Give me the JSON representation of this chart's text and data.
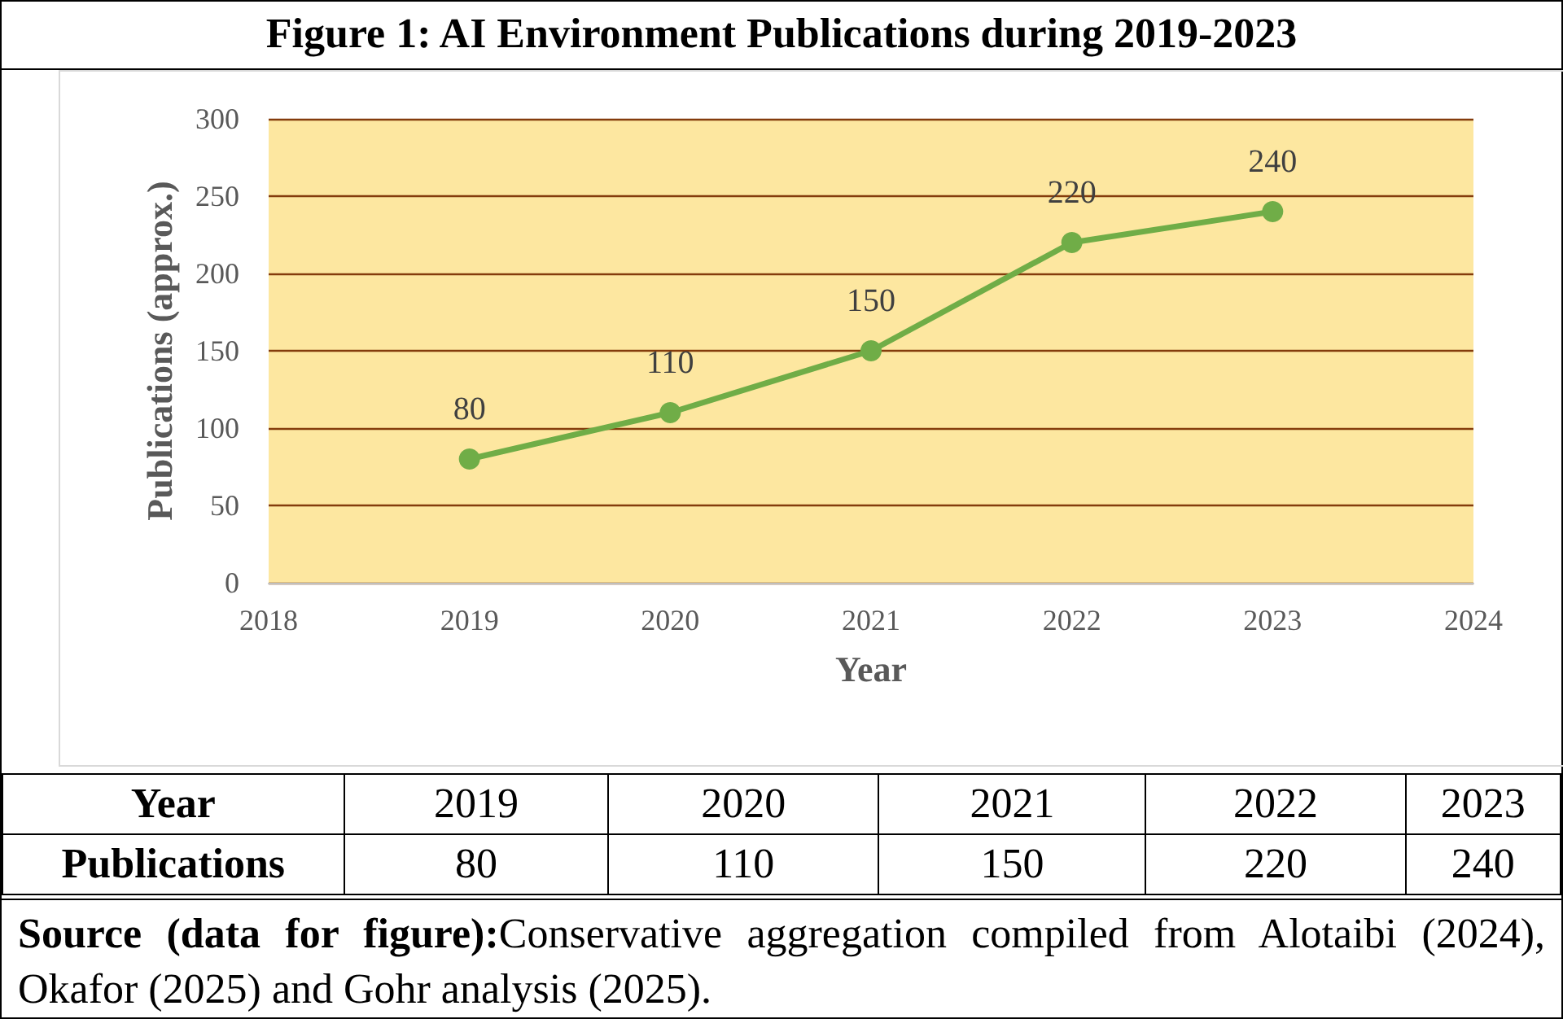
{
  "chart_data": {
    "type": "line",
    "title": "Figure 1: AI Environment Publications during 2019-2023",
    "xlabel": "Year",
    "ylabel": "Publications (approx.)",
    "x": [
      2019,
      2020,
      2021,
      2022,
      2023
    ],
    "series": [
      {
        "color": "#70ad47",
        "values": [
          80,
          110,
          150,
          220,
          240
        ]
      }
    ],
    "xlim": [
      2018,
      2024
    ],
    "xticks": [
      2018,
      2019,
      2020,
      2021,
      2022,
      2023,
      2024
    ],
    "ylim": [
      0,
      300
    ],
    "yticks": [
      0,
      50,
      100,
      150,
      200,
      250,
      300
    ],
    "grid": "y",
    "marker": "circle",
    "line_style": "solid",
    "data_labels": true,
    "annotations": [
      "Year",
      "2019",
      "2020",
      "2021",
      "2022",
      "2023",
      "Publications",
      "80",
      "110",
      "150",
      "220",
      "240",
      "Source (data for figure):",
      "Conservative aggregation compiled from Alotaibi (2024), Okafor (2025) and Gohr analysis (2025)."
    ]
  }
}
